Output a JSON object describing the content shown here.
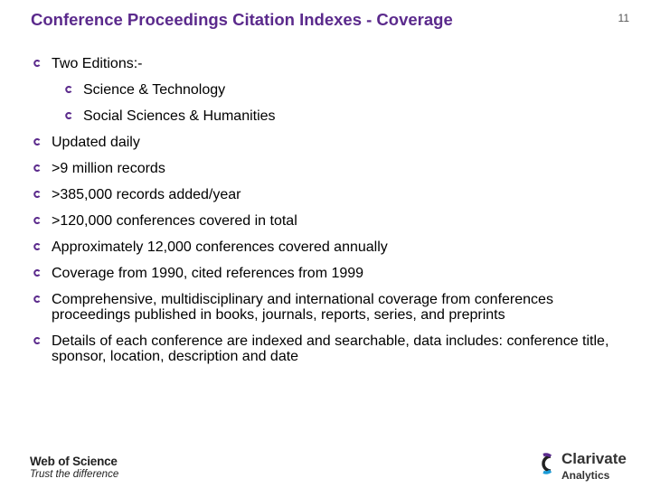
{
  "slide": {
    "title": "Conference Proceedings Citation Indexes - Coverage",
    "page_number": "11",
    "accent_color": "#5b2a8c",
    "bullet_icon": "c-ring-bullet-icon",
    "bullets": [
      {
        "text": "Two Editions:-"
      },
      {
        "text": "Science & Technology"
      },
      {
        "text": "Social Sciences & Humanities"
      },
      {
        "text": "Updated daily"
      },
      {
        "text": ">9 million records"
      },
      {
        "text": ">385,000 records added/year"
      },
      {
        "text": ">120,000 conferences covered in total"
      },
      {
        "text": "Approximately 12,000 conferences covered annually"
      },
      {
        "text": "Coverage from 1990, cited references from 1999"
      },
      {
        "text": "Comprehensive, multidisciplinary and international coverage from conferences proceedings published in books, journals, reports, series, and preprints"
      },
      {
        "text": "Details of each conference are indexed and searchable, data includes: conference title, sponsor, location, description and date"
      }
    ]
  },
  "footer": {
    "left_brand": "Web of Science",
    "left_tagline": "Trust the difference",
    "right_brand": "Clarivate",
    "right_subbrand": "Analytics",
    "right_logo_icon": "clarivate-logo-icon",
    "logo_colors": [
      "#5b2a8c",
      "#1a9bd7",
      "#222222"
    ]
  }
}
